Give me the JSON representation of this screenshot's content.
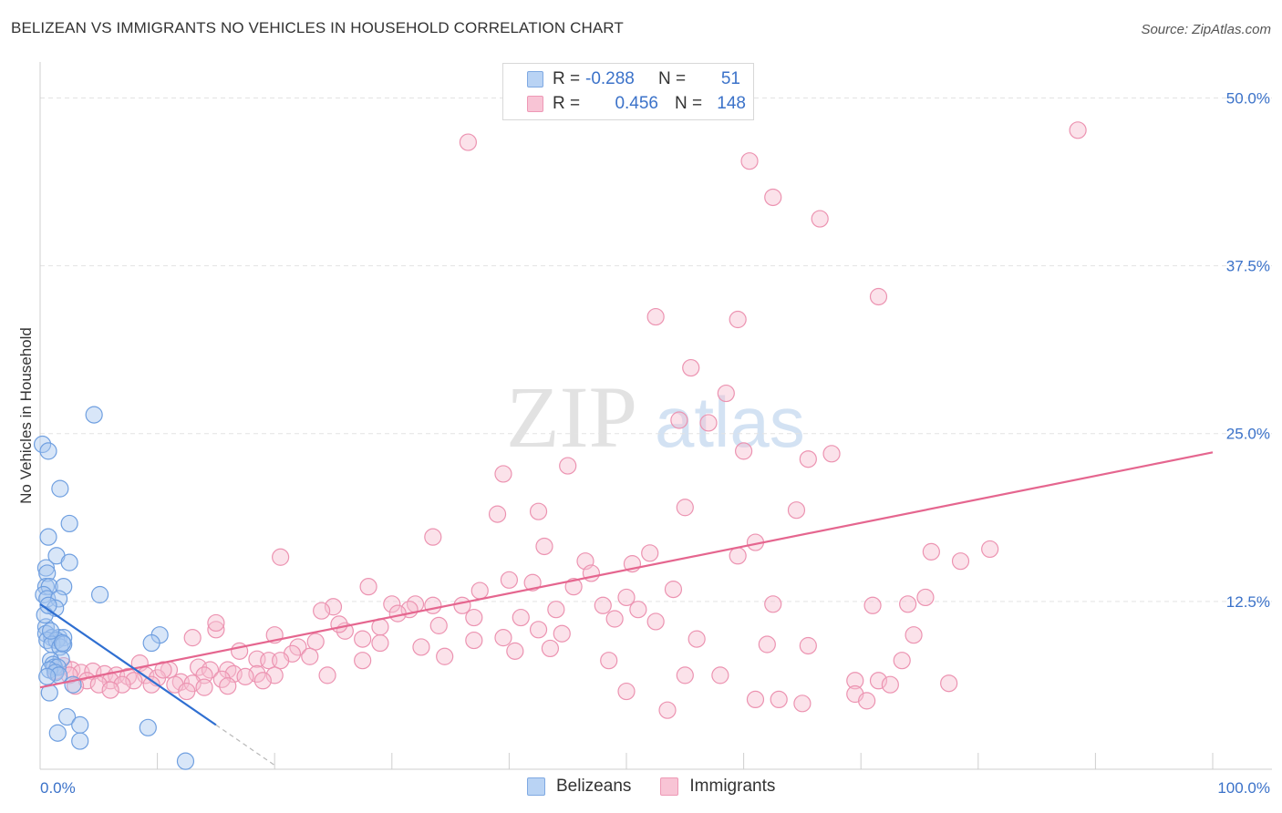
{
  "title": "BELIZEAN VS IMMIGRANTS NO VEHICLES IN HOUSEHOLD CORRELATION CHART",
  "source": "Source: ZipAtlas.com",
  "watermark": {
    "zip": "ZIP",
    "atlas": "atlas"
  },
  "colors": {
    "blue_fill": "#a9c8f0",
    "blue_stroke": "#6f9fe0",
    "blue_line": "#2f6fd1",
    "pink_fill": "#f7bfd1",
    "pink_stroke": "#ec93b1",
    "pink_line": "#e5668f",
    "axis_text": "#3b72c9"
  },
  "legend": {
    "rows": [
      {
        "r_label": "R =",
        "r_value": "-0.288",
        "n_label": "N =",
        "n_value": "51"
      },
      {
        "r_label": "R =",
        "r_value": "0.456",
        "n_label": "N =",
        "n_value": "148"
      }
    ]
  },
  "bottom_legend": {
    "blue": "Belizeans",
    "pink": "Immigrants"
  },
  "chart_data": {
    "type": "scatter",
    "title": "BELIZEAN VS IMMIGRANTS NO VEHICLES IN HOUSEHOLD CORRELATION CHART",
    "xlabel": "",
    "ylabel": "No Vehicles in Household",
    "xlim": [
      0,
      100
    ],
    "ylim": [
      0,
      52
    ],
    "x_tick_labels": [
      "0.0%",
      "100.0%"
    ],
    "y_ticks": [
      12.5,
      25.0,
      37.5,
      50.0
    ],
    "y_tick_labels": [
      "12.5%",
      "25.0%",
      "37.5%",
      "50.0%"
    ],
    "series": [
      {
        "name": "Belizeans",
        "r": -0.288,
        "n": 51,
        "trend": {
          "x0": 0,
          "y0": 12.3,
          "x1": 15,
          "y1": 3.3,
          "dash_x1": 20
        },
        "points": [
          [
            0.2,
            24.2
          ],
          [
            0.7,
            23.7
          ],
          [
            1.7,
            20.9
          ],
          [
            4.6,
            26.4
          ],
          [
            2.5,
            18.3
          ],
          [
            0.7,
            17.3
          ],
          [
            1.4,
            15.9
          ],
          [
            2.5,
            15.4
          ],
          [
            0.5,
            15.0
          ],
          [
            0.6,
            14.6
          ],
          [
            0.5,
            13.6
          ],
          [
            0.8,
            13.6
          ],
          [
            2.0,
            13.6
          ],
          [
            0.3,
            13.0
          ],
          [
            5.1,
            13.0
          ],
          [
            0.6,
            12.7
          ],
          [
            1.6,
            12.7
          ],
          [
            1.3,
            12.0
          ],
          [
            0.5,
            10.6
          ],
          [
            0.5,
            10.1
          ],
          [
            1.0,
            9.8
          ],
          [
            1.6,
            9.8
          ],
          [
            2.0,
            9.8
          ],
          [
            10.2,
            10.0
          ],
          [
            0.6,
            9.6
          ],
          [
            1.4,
            9.6
          ],
          [
            1.0,
            9.3
          ],
          [
            1.7,
            9.1
          ],
          [
            2.0,
            9.3
          ],
          [
            9.5,
            9.4
          ],
          [
            1.8,
            8.2
          ],
          [
            0.9,
            8.1
          ],
          [
            1.1,
            7.8
          ],
          [
            1.2,
            7.6
          ],
          [
            1.5,
            7.6
          ],
          [
            0.8,
            7.4
          ],
          [
            1.3,
            7.2
          ],
          [
            1.6,
            7.0
          ],
          [
            0.6,
            6.9
          ],
          [
            2.8,
            6.3
          ],
          [
            0.8,
            5.7
          ],
          [
            2.3,
            3.9
          ],
          [
            3.4,
            3.3
          ],
          [
            9.2,
            3.1
          ],
          [
            1.5,
            2.7
          ],
          [
            3.4,
            2.1
          ],
          [
            12.4,
            0.6
          ],
          [
            0.4,
            11.5
          ],
          [
            0.9,
            10.3
          ],
          [
            1.9,
            9.4
          ],
          [
            0.7,
            12.2
          ]
        ]
      },
      {
        "name": "Immigrants",
        "r": 0.456,
        "n": 148,
        "trend": {
          "x0": 0,
          "y0": 6.1,
          "x1": 100,
          "y1": 23.6
        },
        "points": [
          [
            36.5,
            46.7
          ],
          [
            88.5,
            47.6
          ],
          [
            60.5,
            45.3
          ],
          [
            62.5,
            42.6
          ],
          [
            66.5,
            41.0
          ],
          [
            71.5,
            35.2
          ],
          [
            52.5,
            33.7
          ],
          [
            59.5,
            33.5
          ],
          [
            55.5,
            29.9
          ],
          [
            58.5,
            28.0
          ],
          [
            54.5,
            26.0
          ],
          [
            57.0,
            25.8
          ],
          [
            67.5,
            23.5
          ],
          [
            60.0,
            23.7
          ],
          [
            65.5,
            23.1
          ],
          [
            45.0,
            22.6
          ],
          [
            39.5,
            22.0
          ],
          [
            55.0,
            19.5
          ],
          [
            64.5,
            19.3
          ],
          [
            39.0,
            19.0
          ],
          [
            42.5,
            19.2
          ],
          [
            33.5,
            17.3
          ],
          [
            61.0,
            16.9
          ],
          [
            43.0,
            16.6
          ],
          [
            81.0,
            16.4
          ],
          [
            76.0,
            16.2
          ],
          [
            52.0,
            16.1
          ],
          [
            59.5,
            15.9
          ],
          [
            20.5,
            15.8
          ],
          [
            78.5,
            15.5
          ],
          [
            46.5,
            15.5
          ],
          [
            50.5,
            15.3
          ],
          [
            47.0,
            14.6
          ],
          [
            40.0,
            14.1
          ],
          [
            42.0,
            13.9
          ],
          [
            28.0,
            13.6
          ],
          [
            45.5,
            13.6
          ],
          [
            37.5,
            13.3
          ],
          [
            54.0,
            13.4
          ],
          [
            75.5,
            12.8
          ],
          [
            50.0,
            12.8
          ],
          [
            32.0,
            12.3
          ],
          [
            33.5,
            12.2
          ],
          [
            30.0,
            12.3
          ],
          [
            36.0,
            12.2
          ],
          [
            48.0,
            12.2
          ],
          [
            25.0,
            12.1
          ],
          [
            24.0,
            11.8
          ],
          [
            31.5,
            11.9
          ],
          [
            44.0,
            11.9
          ],
          [
            62.5,
            12.3
          ],
          [
            71.0,
            12.2
          ],
          [
            74.0,
            12.3
          ],
          [
            51.0,
            11.9
          ],
          [
            37.0,
            11.3
          ],
          [
            30.5,
            11.6
          ],
          [
            41.0,
            11.3
          ],
          [
            49.0,
            11.2
          ],
          [
            52.5,
            11.0
          ],
          [
            34.0,
            10.7
          ],
          [
            29.0,
            10.6
          ],
          [
            42.5,
            10.4
          ],
          [
            26.0,
            10.3
          ],
          [
            44.5,
            10.1
          ],
          [
            15.0,
            10.4
          ],
          [
            20.0,
            10.0
          ],
          [
            13.0,
            9.8
          ],
          [
            39.5,
            9.8
          ],
          [
            27.5,
            9.7
          ],
          [
            56.0,
            9.7
          ],
          [
            74.5,
            10.0
          ],
          [
            37.0,
            9.6
          ],
          [
            23.5,
            9.5
          ],
          [
            29.0,
            9.4
          ],
          [
            62.0,
            9.3
          ],
          [
            65.5,
            9.2
          ],
          [
            32.5,
            9.1
          ],
          [
            22.0,
            9.1
          ],
          [
            43.5,
            9.0
          ],
          [
            40.5,
            8.8
          ],
          [
            17.0,
            8.8
          ],
          [
            21.5,
            8.6
          ],
          [
            23.0,
            8.4
          ],
          [
            34.5,
            8.4
          ],
          [
            18.5,
            8.2
          ],
          [
            27.5,
            8.1
          ],
          [
            19.5,
            8.1
          ],
          [
            20.5,
            8.1
          ],
          [
            48.5,
            8.1
          ],
          [
            73.5,
            8.1
          ],
          [
            8.5,
            7.9
          ],
          [
            13.5,
            7.6
          ],
          [
            14.5,
            7.4
          ],
          [
            2.0,
            7.7
          ],
          [
            1.3,
            7.3
          ],
          [
            2.7,
            7.4
          ],
          [
            3.5,
            7.2
          ],
          [
            11.0,
            7.4
          ],
          [
            16.0,
            7.4
          ],
          [
            4.5,
            7.3
          ],
          [
            16.5,
            7.1
          ],
          [
            5.5,
            7.1
          ],
          [
            18.5,
            7.1
          ],
          [
            20.0,
            7.0
          ],
          [
            2.5,
            7.0
          ],
          [
            6.5,
            7.0
          ],
          [
            9.0,
            7.0
          ],
          [
            14.0,
            7.0
          ],
          [
            24.5,
            7.0
          ],
          [
            7.5,
            6.9
          ],
          [
            17.5,
            6.9
          ],
          [
            10.0,
            6.8
          ],
          [
            15.5,
            6.7
          ],
          [
            4.0,
            6.6
          ],
          [
            6.0,
            6.6
          ],
          [
            8.0,
            6.6
          ],
          [
            12.0,
            6.5
          ],
          [
            13.0,
            6.4
          ],
          [
            19.0,
            6.6
          ],
          [
            5.0,
            6.3
          ],
          [
            7.0,
            6.3
          ],
          [
            9.5,
            6.3
          ],
          [
            11.5,
            6.3
          ],
          [
            16.0,
            6.2
          ],
          [
            3.0,
            6.2
          ],
          [
            6.0,
            5.9
          ],
          [
            12.5,
            5.8
          ],
          [
            14.0,
            6.1
          ],
          [
            55.0,
            7.0
          ],
          [
            58.0,
            7.0
          ],
          [
            69.5,
            6.6
          ],
          [
            71.5,
            6.6
          ],
          [
            72.5,
            6.3
          ],
          [
            50.0,
            5.8
          ],
          [
            77.5,
            6.4
          ],
          [
            69.5,
            5.6
          ],
          [
            63.0,
            5.2
          ],
          [
            61.0,
            5.2
          ],
          [
            65.0,
            4.9
          ],
          [
            70.5,
            5.1
          ],
          [
            53.5,
            4.4
          ],
          [
            15.0,
            10.9
          ],
          [
            25.5,
            10.8
          ],
          [
            10.5,
            7.4
          ]
        ]
      }
    ]
  }
}
